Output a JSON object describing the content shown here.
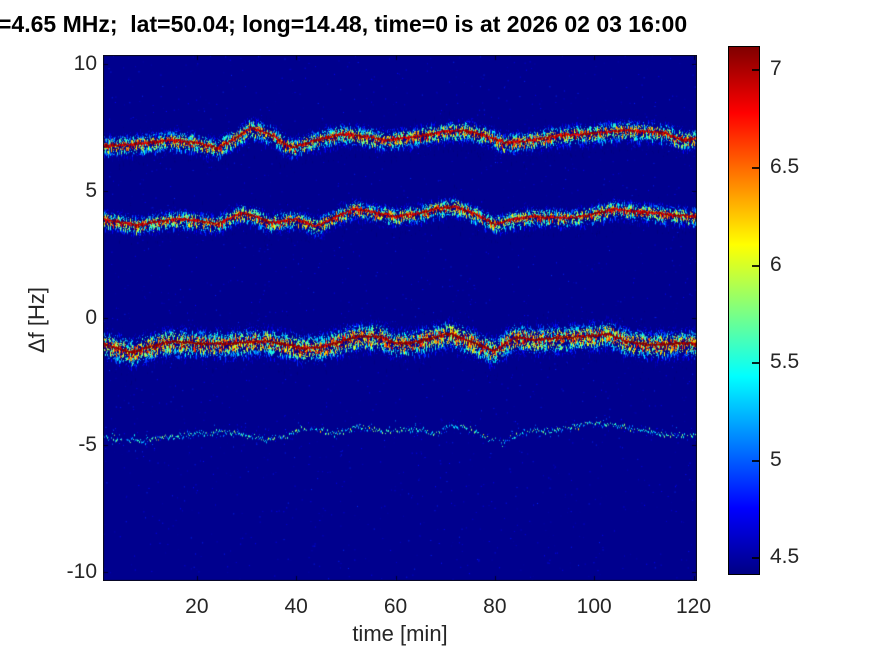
{
  "title": "=4.65 MHz;  lat=50.04; long=14.48, time=0 is at 2026 02 03 16:00",
  "axes": {
    "xlabel": "time [min]",
    "ylabel": "Δf [Hz]",
    "x_ticks": [
      20,
      40,
      60,
      80,
      100,
      120
    ],
    "y_ticks": [
      10,
      5,
      0,
      -5,
      -10
    ],
    "x_range": [
      1.1,
      120.7
    ],
    "y_range": [
      -10.35,
      10.35
    ]
  },
  "colorbar": {
    "ticks": [
      7,
      6.5,
      6,
      5.5,
      5,
      4.5
    ],
    "range": [
      4.41,
      7.12
    ],
    "colormap": "jet",
    "gradient_stops": [
      [
        "#800000",
        0
      ],
      [
        "#ff0000",
        12.5
      ],
      [
        "#ffff00",
        37.5
      ],
      [
        "#00ffff",
        62.5
      ],
      [
        "#0000ff",
        87.5
      ],
      [
        "#000084",
        100
      ]
    ]
  },
  "colors": {
    "figure_background": "#ffffff",
    "plot_background_navy": "#000090",
    "tick_text": "#262626",
    "title_text": "#000000"
  },
  "chart_data": {
    "type": "heatmap",
    "description": "Doppler shift spectrogram (log10 amplitude, jet colormap) showing four wavy multipath traces on a dark navy background",
    "background_value": 4.45,
    "clim": [
      4.41,
      7.12
    ],
    "traces": [
      {
        "name": "trace-upper-7Hz",
        "t": [
          1,
          5,
          10,
          15,
          20,
          24,
          28,
          31,
          35,
          39,
          44,
          49,
          54,
          58,
          62,
          66,
          70,
          74,
          78,
          82,
          86,
          90,
          94,
          98,
          102,
          106,
          110,
          114,
          118,
          121
        ],
        "df": [
          6.8,
          6.8,
          6.9,
          7.0,
          6.9,
          6.7,
          7.1,
          7.5,
          7.2,
          6.7,
          7.0,
          7.25,
          7.15,
          7.0,
          7.1,
          7.2,
          7.35,
          7.4,
          7.2,
          6.9,
          6.95,
          7.1,
          7.2,
          7.25,
          7.3,
          7.4,
          7.35,
          7.3,
          7.0,
          7.1
        ],
        "peak_intensity": 7.1,
        "spread_hz": 0.24,
        "density": 12,
        "core": true,
        "asym": 1.4
      },
      {
        "name": "trace-mid-4Hz",
        "t": [
          1,
          5,
          8,
          12,
          16,
          20,
          24,
          29,
          32,
          35,
          40,
          44,
          48,
          52,
          56,
          60,
          64,
          68,
          72,
          76,
          80,
          84,
          88,
          92,
          96,
          100,
          104,
          108,
          112,
          116,
          121
        ],
        "df": [
          3.9,
          3.75,
          3.65,
          3.8,
          3.9,
          3.85,
          3.7,
          4.15,
          4.0,
          3.75,
          3.9,
          3.6,
          4.0,
          4.3,
          4.15,
          4.0,
          4.1,
          4.3,
          4.4,
          4.1,
          3.7,
          3.9,
          4.0,
          3.95,
          3.95,
          4.1,
          4.3,
          4.2,
          4.15,
          4.05,
          4.0
        ],
        "peak_intensity": 7.1,
        "spread_hz": 0.22,
        "density": 11,
        "core": true,
        "asym": 1.4
      },
      {
        "name": "trace-lower-minus1Hz",
        "t": [
          1,
          4,
          7,
          10,
          14,
          18,
          22,
          26,
          30,
          34,
          38,
          42,
          46,
          50,
          53,
          57,
          60,
          64,
          68,
          71,
          75,
          80,
          84,
          88,
          92,
          96,
          100,
          103,
          106,
          111,
          116,
          121
        ],
        "df": [
          -1.0,
          -1.2,
          -1.35,
          -1.15,
          -0.95,
          -0.95,
          -1.0,
          -1.0,
          -0.95,
          -0.9,
          -1.05,
          -1.2,
          -1.1,
          -0.85,
          -0.7,
          -0.75,
          -1.0,
          -0.95,
          -0.75,
          -0.6,
          -0.9,
          -1.3,
          -0.75,
          -0.85,
          -0.8,
          -0.75,
          -0.7,
          -0.6,
          -0.9,
          -1.05,
          -1.0,
          -1.0
        ],
        "peak_intensity": 7.25,
        "spread_hz": 0.33,
        "density": 16,
        "core": true,
        "asym": 1.15
      },
      {
        "name": "trace-faint-minus4.5Hz",
        "t": [
          1,
          5,
          9,
          13,
          17,
          22,
          26,
          30,
          34,
          38,
          41,
          45,
          48,
          52,
          56,
          60,
          64,
          68,
          71,
          75,
          79,
          82,
          85,
          88,
          91,
          95,
          99,
          103,
          108,
          111,
          114,
          118,
          121
        ],
        "df": [
          -4.6,
          -4.75,
          -4.85,
          -4.7,
          -4.6,
          -4.5,
          -4.45,
          -4.6,
          -4.75,
          -4.65,
          -4.35,
          -4.35,
          -4.55,
          -4.25,
          -4.35,
          -4.45,
          -4.35,
          -4.55,
          -4.2,
          -4.35,
          -4.75,
          -4.85,
          -4.55,
          -4.4,
          -4.45,
          -4.3,
          -4.1,
          -4.15,
          -4.35,
          -4.45,
          -4.55,
          -4.6,
          -4.55
        ],
        "peak_intensity": 5.8,
        "spread_hz": 0.05,
        "density": 2,
        "core": false,
        "asym": 1.0
      }
    ]
  }
}
